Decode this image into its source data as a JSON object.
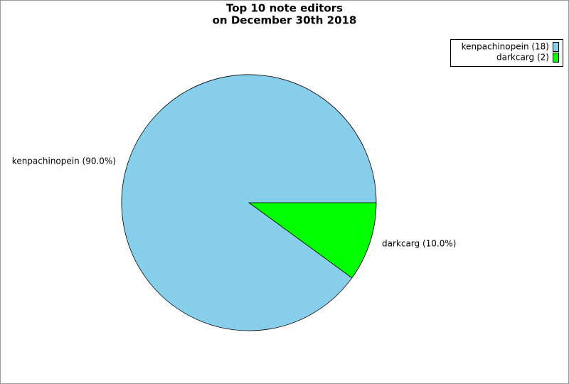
{
  "chart_data": {
    "type": "pie",
    "title": [
      "Top 10 note editors",
      "on December 30th 2018"
    ],
    "categories": [
      "kenpachinopein (18)",
      "darkcarg (2)"
    ],
    "values": [
      18,
      2
    ],
    "value_labels": [
      "kenpachinopein (90.0%)",
      "darkcarg (10.0%)"
    ],
    "colors": [
      "#87ceeb",
      "#00ff00"
    ],
    "legend": "upper right"
  }
}
